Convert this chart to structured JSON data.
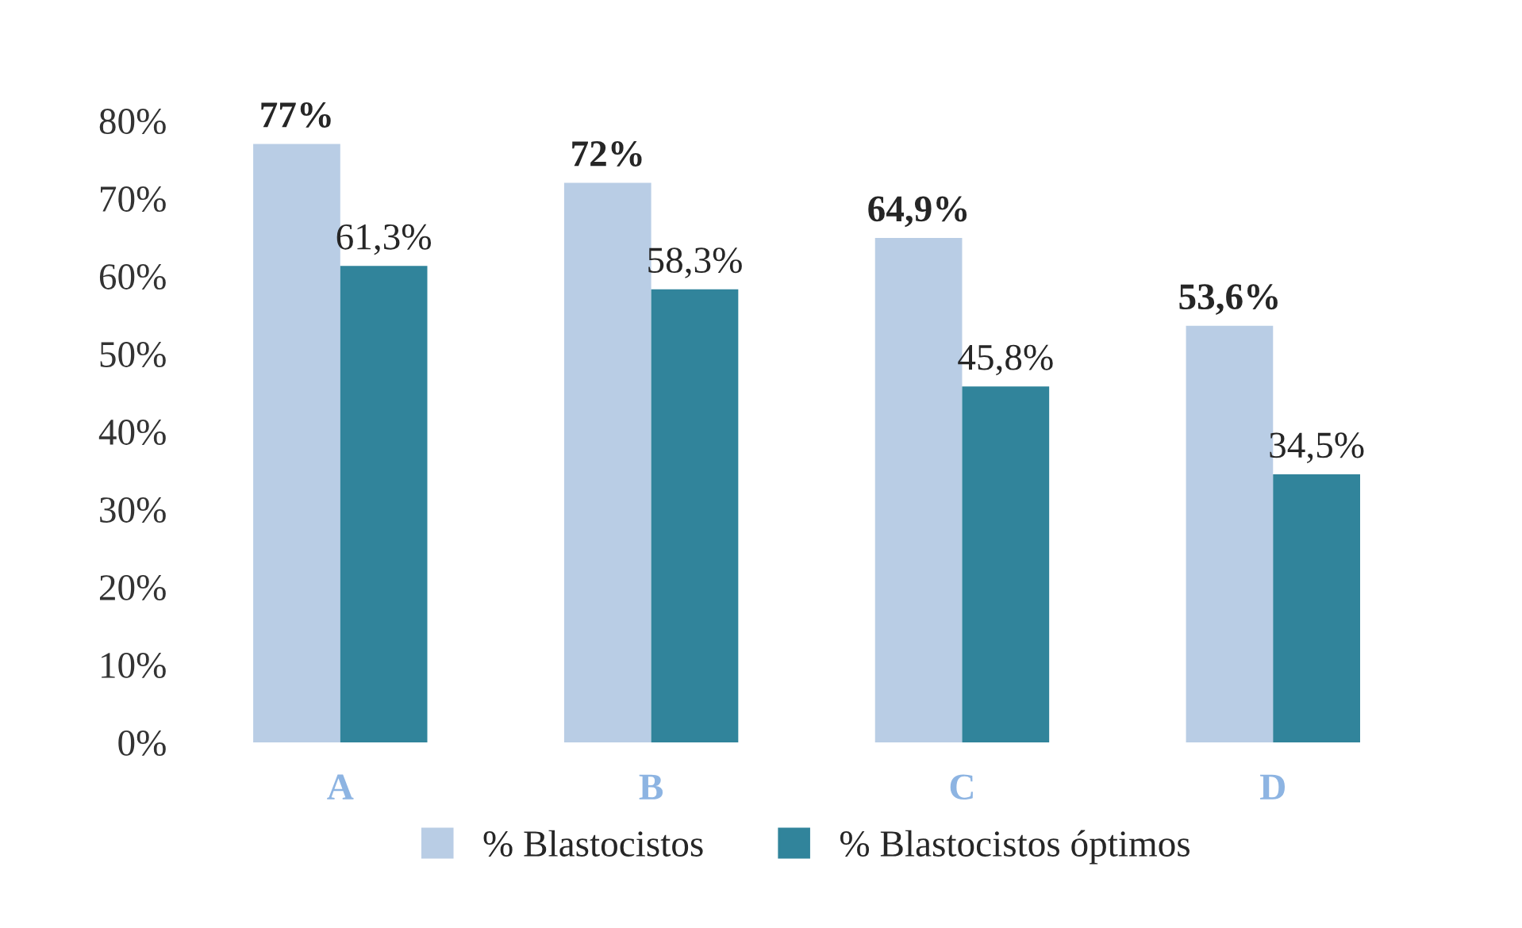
{
  "chart_data": {
    "type": "bar",
    "categories": [
      "A",
      "B",
      "C",
      "D"
    ],
    "series": [
      {
        "name": "% Blastocistos",
        "color": "#b9cde5",
        "values": [
          77,
          72,
          64.9,
          53.6
        ],
        "value_labels": [
          "77%",
          "72%",
          "64,9%",
          "53,6%"
        ]
      },
      {
        "name": "% Blastocistos óptimos",
        "color": "#31849b",
        "values": [
          61.3,
          58.3,
          45.8,
          34.5
        ],
        "value_labels": [
          "61,3%",
          "58,3%",
          "45,8%",
          "34,5%"
        ]
      }
    ],
    "ylim": [
      0,
      80
    ],
    "yticks": [
      {
        "value": 0,
        "label": "0%"
      },
      {
        "value": 10,
        "label": "10%"
      },
      {
        "value": 20,
        "label": "20%"
      },
      {
        "value": 30,
        "label": "30%"
      },
      {
        "value": 40,
        "label": "40%"
      },
      {
        "value": 50,
        "label": "50%"
      },
      {
        "value": 60,
        "label": "60%"
      },
      {
        "value": 70,
        "label": "70%"
      },
      {
        "value": 80,
        "label": "80%"
      }
    ],
    "grid": false,
    "legend": "bottom"
  }
}
